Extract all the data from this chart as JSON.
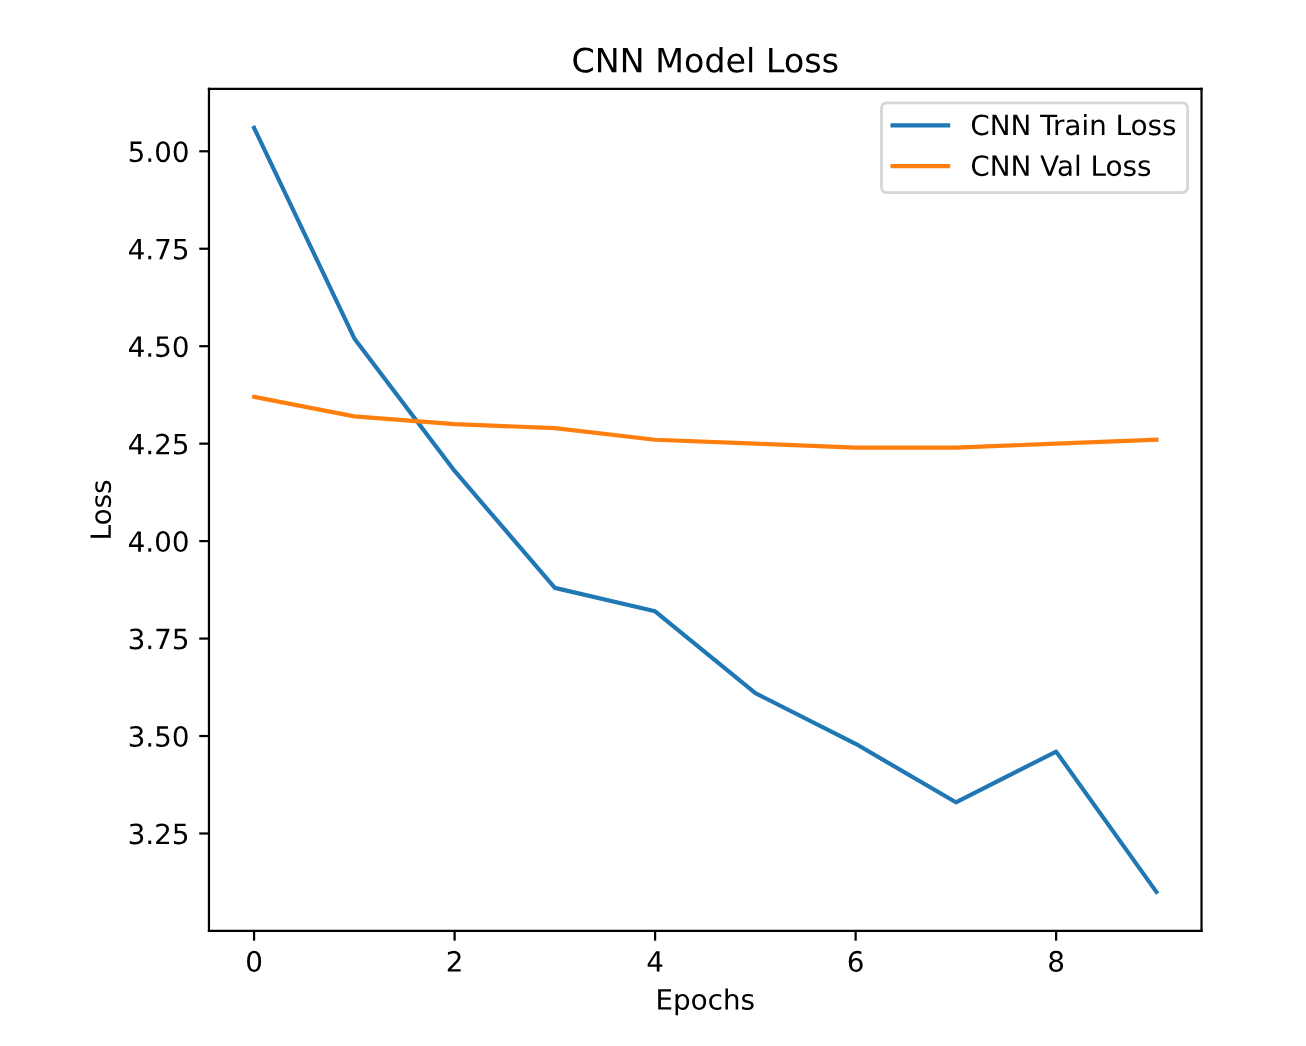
{
  "chart_data": {
    "type": "line",
    "title": "CNN Model Loss",
    "xlabel": "Epochs",
    "ylabel": "Loss",
    "x": [
      0,
      1,
      2,
      3,
      4,
      5,
      6,
      7,
      8,
      9
    ],
    "series": [
      {
        "name": "CNN Train Loss",
        "color": "#1f77b4",
        "values": [
          5.06,
          4.52,
          4.18,
          3.88,
          3.82,
          3.61,
          3.48,
          3.33,
          3.46,
          3.1
        ]
      },
      {
        "name": "CNN Val Loss",
        "color": "#ff7f0e",
        "values": [
          4.37,
          4.32,
          4.3,
          4.29,
          4.26,
          4.25,
          4.24,
          4.24,
          4.25,
          4.26
        ]
      }
    ],
    "xlim": [
      -0.45,
      9.45
    ],
    "ylim": [
      3.0,
      5.16
    ],
    "xticks": [
      0,
      2,
      4,
      6,
      8
    ],
    "yticks": [
      {
        "value": 3.25,
        "label": "3.25"
      },
      {
        "value": 3.5,
        "label": "3.50"
      },
      {
        "value": 3.75,
        "label": "3.75"
      },
      {
        "value": 4.0,
        "label": "4.00"
      },
      {
        "value": 4.25,
        "label": "4.25"
      },
      {
        "value": 4.5,
        "label": "4.50"
      },
      {
        "value": 4.75,
        "label": "4.75"
      },
      {
        "value": 5.0,
        "label": "5.00"
      }
    ],
    "legend": "upper right",
    "grid": false
  }
}
